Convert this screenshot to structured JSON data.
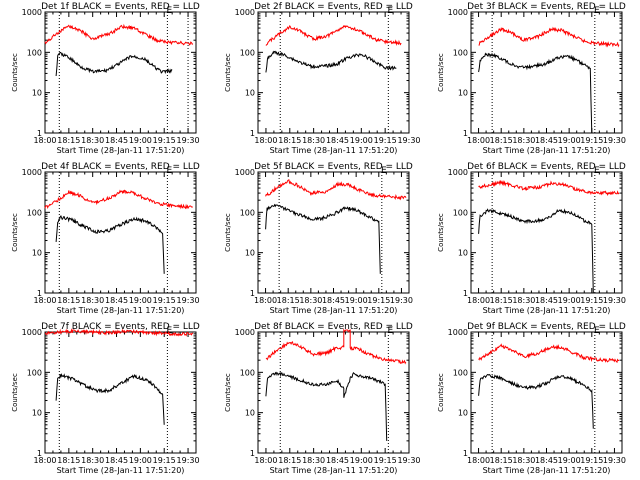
{
  "panels": [
    {
      "title": "Det 1f BLACK = Events, RED = LLD",
      "flag": "E",
      "xlabel": "Start Time (28-Jan-11 17:51:20)",
      "ylabel": "Counts/sec",
      "xtick_labels": [
        "18:00",
        "18:15",
        "18:30",
        "18:45",
        "19:00",
        "19:15",
        "19:30"
      ],
      "ytick_labels": [
        "1",
        "10",
        "100",
        "1000"
      ],
      "chart_data": {
        "type": "line",
        "yscale": "log",
        "ylim": [
          1,
          1000
        ],
        "xlim": [
          "18:00",
          "19:35"
        ],
        "markers": [
          "18:09",
          "19:17",
          "19:30"
        ],
        "series": [
          {
            "color": "#ff0000",
            "x": [
              "18:00",
              "18:08",
              "18:15",
              "18:22",
              "18:30",
              "18:40",
              "18:48",
              "18:55",
              "19:02",
              "19:10",
              "19:17",
              "19:25",
              "19:33"
            ],
            "y": [
              170,
              300,
              450,
              350,
              215,
              280,
              430,
              410,
              300,
              200,
              180,
              170,
              165
            ]
          },
          {
            "color": "#000000",
            "x": [
              "18:07",
              "18:08",
              "18:09",
              "18:15",
              "18:22",
              "18:30",
              "18:38",
              "18:46",
              "18:54",
              "19:02",
              "19:10",
              "19:14",
              "19:20"
            ],
            "y": [
              25,
              80,
              95,
              75,
              45,
              33,
              35,
              50,
              80,
              70,
              40,
              32,
              36
            ]
          }
        ]
      }
    },
    {
      "title": "Det 2f BLACK = Events, RED = LLD",
      "flag": "E",
      "xlabel": "Start Time (28-Jan-11 17:51:20)",
      "ylabel": "Counts/sec",
      "xtick_labels": [
        "18:00",
        "18:15",
        "18:30",
        "18:45",
        "19:00",
        "19:15",
        "19:30"
      ],
      "ytick_labels": [
        "1",
        "10",
        "100",
        "1000"
      ],
      "chart_data": {
        "type": "line",
        "yscale": "log",
        "ylim": [
          1,
          1000
        ],
        "xlim": [
          "17:55",
          "19:30"
        ],
        "markers": [
          "18:09",
          "19:17"
        ],
        "series": [
          {
            "color": "#ff0000",
            "x": [
              "18:00",
              "18:08",
              "18:15",
              "18:22",
              "18:30",
              "18:40",
              "18:48",
              "18:55",
              "19:02",
              "19:10",
              "19:17",
              "19:25"
            ],
            "y": [
              160,
              280,
              430,
              330,
              210,
              270,
              420,
              400,
              290,
              200,
              180,
              170
            ]
          },
          {
            "color": "#000000",
            "x": [
              "18:00",
              "18:01",
              "18:05",
              "18:12",
              "18:20",
              "18:28",
              "18:36",
              "18:44",
              "18:52",
              "19:00",
              "19:08",
              "19:15",
              "19:22"
            ],
            "y": [
              30,
              70,
              100,
              85,
              60,
              45,
              45,
              50,
              75,
              90,
              60,
              42,
              40
            ]
          }
        ]
      }
    },
    {
      "title": "Det 3f BLACK = Events, RED = LLD",
      "flag": "E",
      "xlabel": "Start Time (28-Jan-11 17:51:20)",
      "ylabel": "Counts/sec",
      "xtick_labels": [
        "18:00",
        "18:15",
        "18:30",
        "18:45",
        "19:00",
        "19:15",
        "19:30"
      ],
      "ytick_labels": [
        "1",
        "10",
        "100",
        "1000"
      ],
      "chart_data": {
        "type": "line",
        "yscale": "log",
        "ylim": [
          1,
          1000
        ],
        "xlim": [
          "17:55",
          "19:35"
        ],
        "markers": [
          "18:09",
          "19:17"
        ],
        "series": [
          {
            "color": "#ff0000",
            "x": [
              "18:00",
              "18:08",
              "18:15",
              "18:22",
              "18:30",
              "18:40",
              "18:48",
              "18:55",
              "19:02",
              "19:10",
              "19:17",
              "19:25",
              "19:33"
            ],
            "y": [
              160,
              250,
              380,
              300,
              200,
              250,
              370,
              350,
              260,
              190,
              170,
              160,
              155
            ]
          },
          {
            "color": "#000000",
            "x": [
              "18:00",
              "18:01",
              "18:05",
              "18:12",
              "18:20",
              "18:28",
              "18:36",
              "18:44",
              "18:52",
              "19:00",
              "19:08",
              "19:14",
              "19:14",
              "19:15"
            ],
            "y": [
              30,
              65,
              90,
              80,
              55,
              42,
              45,
              50,
              75,
              80,
              55,
              40,
              40,
              1
            ]
          }
        ]
      }
    },
    {
      "title": "Det 4f BLACK = Events, RED = LLD",
      "flag": "E",
      "xlabel": "Start Time (28-Jan-11 17:51:20)",
      "ylabel": "Counts/sec",
      "xtick_labels": [
        "18:00",
        "18:15",
        "18:30",
        "18:45",
        "19:00",
        "19:15",
        "19:30"
      ],
      "ytick_labels": [
        "1",
        "10",
        "100",
        "1000"
      ],
      "chart_data": {
        "type": "line",
        "yscale": "log",
        "ylim": [
          1,
          1000
        ],
        "xlim": [
          "18:00",
          "19:35"
        ],
        "markers": [
          "18:09",
          "19:17"
        ],
        "series": [
          {
            "color": "#ff0000",
            "x": [
              "18:00",
              "18:08",
              "18:15",
              "18:22",
              "18:30",
              "18:40",
              "18:48",
              "18:55",
              "19:02",
              "19:10",
              "19:17",
              "19:25",
              "19:33"
            ],
            "y": [
              130,
              200,
              320,
              260,
              170,
              220,
              330,
              310,
              230,
              170,
              150,
              140,
              135
            ]
          },
          {
            "color": "#000000",
            "x": [
              "18:07",
              "18:08",
              "18:10",
              "18:17",
              "18:24",
              "18:32",
              "18:40",
              "18:48",
              "18:56",
              "19:04",
              "19:10",
              "19:14",
              "19:15"
            ],
            "y": [
              20,
              60,
              75,
              65,
              45,
              33,
              35,
              50,
              70,
              60,
              42,
              28,
              3
            ]
          }
        ]
      }
    },
    {
      "title": "Det 5f BLACK = Events, RED = LLD",
      "flag": "E",
      "xlabel": "Start Time (28-Jan-11 17:51:20)",
      "ylabel": "Counts/sec",
      "xtick_labels": [
        "18:00",
        "18:15",
        "18:30",
        "18:45",
        "19:00",
        "19:15",
        "19:30"
      ],
      "ytick_labels": [
        "1",
        "10",
        "100",
        "1000"
      ],
      "chart_data": {
        "type": "line",
        "yscale": "log",
        "ylim": [
          1,
          1000
        ],
        "xlim": [
          "17:55",
          "19:35"
        ],
        "markers": [
          "18:09",
          "19:17"
        ],
        "series": [
          {
            "color": "#ff0000",
            "x": [
              "18:00",
              "18:08",
              "18:15",
              "18:22",
              "18:30",
              "18:40",
              "18:48",
              "18:55",
              "19:02",
              "19:10",
              "19:17",
              "19:25",
              "19:33"
            ],
            "y": [
              250,
              420,
              600,
              450,
              290,
              330,
              500,
              480,
              360,
              270,
              250,
              240,
              230
            ]
          },
          {
            "color": "#000000",
            "x": [
              "18:00",
              "18:01",
              "18:06",
              "18:13",
              "18:21",
              "18:29",
              "18:37",
              "18:45",
              "18:53",
              "19:01",
              "19:09",
              "19:15",
              "19:15",
              "19:16"
            ],
            "y": [
              40,
              120,
              150,
              120,
              90,
              70,
              70,
              90,
              130,
              110,
              75,
              60,
              60,
              3
            ]
          }
        ]
      }
    },
    {
      "title": "Det 6f BLACK = Events, RED = LLD",
      "flag": "E",
      "xlabel": "Start Time (28-Jan-11 17:51:20)",
      "ylabel": "Counts/sec",
      "xtick_labels": [
        "18:00",
        "18:15",
        "18:30",
        "18:45",
        "19:00",
        "19:15",
        "19:30"
      ],
      "ytick_labels": [
        "1",
        "10",
        "100",
        "1000"
      ],
      "chart_data": {
        "type": "line",
        "yscale": "log",
        "ylim": [
          1,
          1000
        ],
        "xlim": [
          "17:55",
          "19:35"
        ],
        "markers": [
          "18:09",
          "19:17"
        ],
        "series": [
          {
            "color": "#ff0000",
            "x": [
              "18:00",
              "18:08",
              "18:15",
              "18:22",
              "18:30",
              "18:40",
              "18:48",
              "18:55",
              "19:02",
              "19:10",
              "19:17",
              "19:25",
              "19:33"
            ],
            "y": [
              420,
              480,
              550,
              470,
              390,
              420,
              520,
              500,
              400,
              330,
              310,
              300,
              300
            ]
          },
          {
            "color": "#000000",
            "x": [
              "18:00",
              "18:01",
              "18:06",
              "18:13",
              "18:21",
              "18:29",
              "18:37",
              "18:45",
              "18:53",
              "19:01",
              "19:09",
              "19:15",
              "19:15",
              "19:16"
            ],
            "y": [
              30,
              80,
              110,
              100,
              80,
              60,
              60,
              70,
              110,
              100,
              65,
              50,
              50,
              1
            ]
          }
        ]
      }
    },
    {
      "title": "Det 7f BLACK = Events, RED = LLD",
      "flag": "E",
      "xlabel": "Start Time (28-Jan-11 17:51:20)",
      "ylabel": "Counts/sec",
      "xtick_labels": [
        "18:00",
        "18:15",
        "18:30",
        "18:45",
        "19:00",
        "19:15",
        "19:30"
      ],
      "ytick_labels": [
        "1",
        "10",
        "100",
        "1000"
      ],
      "chart_data": {
        "type": "line",
        "yscale": "log",
        "ylim": [
          1,
          1000
        ],
        "xlim": [
          "18:00",
          "19:35"
        ],
        "markers": [
          "18:09",
          "19:17"
        ],
        "series": [
          {
            "color": "#ff0000",
            "x": [
              "18:00",
              "18:10",
              "18:20",
              "18:30",
              "18:40",
              "18:50",
              "19:00",
              "19:10",
              "19:20",
              "19:33"
            ],
            "y": [
              900,
              1000,
              1050,
              1000,
              950,
              1050,
              1000,
              950,
              900,
              900
            ]
          },
          {
            "color": "#000000",
            "x": [
              "18:07",
              "18:08",
              "18:10",
              "18:17",
              "18:24",
              "18:32",
              "18:40",
              "18:48",
              "18:56",
              "19:04",
              "19:10",
              "19:14",
              "19:15"
            ],
            "y": [
              20,
              70,
              85,
              70,
              50,
              35,
              35,
              55,
              80,
              65,
              42,
              28,
              5
            ]
          }
        ]
      }
    },
    {
      "title": "Det 8f BLACK = Events, RED = LLD",
      "flag": "E",
      "xlabel": "Start Time (28-Jan-11 17:51:20)",
      "ylabel": "Counts/sec",
      "xtick_labels": [
        "18:00",
        "18:15",
        "18:30",
        "18:45",
        "19:00",
        "19:15",
        "19:30"
      ],
      "ytick_labels": [
        "1",
        "10",
        "100",
        "1000"
      ],
      "chart_data": {
        "type": "line",
        "yscale": "log",
        "ylim": [
          1,
          1000
        ],
        "xlim": [
          "17:55",
          "19:30"
        ],
        "markers": [
          "18:09",
          "19:17"
        ],
        "series": [
          {
            "color": "#ff0000",
            "x": [
              "18:00",
              "18:08",
              "18:15",
              "18:22",
              "18:30",
              "18:38",
              "18:44",
              "18:49",
              "18:49",
              "18:53",
              "18:53",
              "18:58",
              "19:05",
              "19:12",
              "19:20",
              "19:28"
            ],
            "y": [
              210,
              380,
              560,
              420,
              280,
              300,
              400,
              420,
              1200,
              1200,
              400,
              380,
              280,
              220,
              190,
              180
            ]
          },
          {
            "color": "#000000",
            "x": [
              "18:00",
              "18:01",
              "18:06",
              "18:13",
              "18:21",
              "18:29",
              "18:37",
              "18:45",
              "18:49",
              "18:49",
              "18:53",
              "18:55",
              "19:01",
              "19:09",
              "19:15",
              "19:15",
              "19:16"
            ],
            "y": [
              25,
              70,
              95,
              85,
              65,
              50,
              50,
              60,
              40,
              25,
              70,
              90,
              80,
              65,
              50,
              50,
              2
            ]
          }
        ]
      }
    },
    {
      "title": "Det 9f BLACK = Events, RED = LLD",
      "flag": "E",
      "xlabel": "Start Time (28-Jan-11 17:51:20)",
      "ylabel": "Counts/sec",
      "xtick_labels": [
        "18:00",
        "18:15",
        "18:30",
        "18:45",
        "19:00",
        "19:15",
        "19:30"
      ],
      "ytick_labels": [
        "1",
        "10",
        "100",
        "1000"
      ],
      "chart_data": {
        "type": "line",
        "yscale": "log",
        "ylim": [
          1,
          1000
        ],
        "xlim": [
          "17:55",
          "19:35"
        ],
        "markers": [
          "18:09",
          "19:17"
        ],
        "series": [
          {
            "color": "#ff0000",
            "x": [
              "18:00",
              "18:08",
              "18:15",
              "18:22",
              "18:30",
              "18:40",
              "18:48",
              "18:55",
              "19:02",
              "19:10",
              "19:17",
              "19:25",
              "19:33"
            ],
            "y": [
              200,
              320,
              450,
              360,
              250,
              300,
              430,
              410,
              310,
              230,
              210,
              200,
              195
            ]
          },
          {
            "color": "#000000",
            "x": [
              "18:00",
              "18:01",
              "18:06",
              "18:13",
              "18:21",
              "18:29",
              "18:37",
              "18:45",
              "18:53",
              "19:01",
              "19:09",
              "19:15",
              "19:15",
              "19:16"
            ],
            "y": [
              25,
              65,
              85,
              75,
              55,
              42,
              42,
              55,
              80,
              70,
              50,
              35,
              35,
              4
            ]
          }
        ]
      }
    }
  ]
}
